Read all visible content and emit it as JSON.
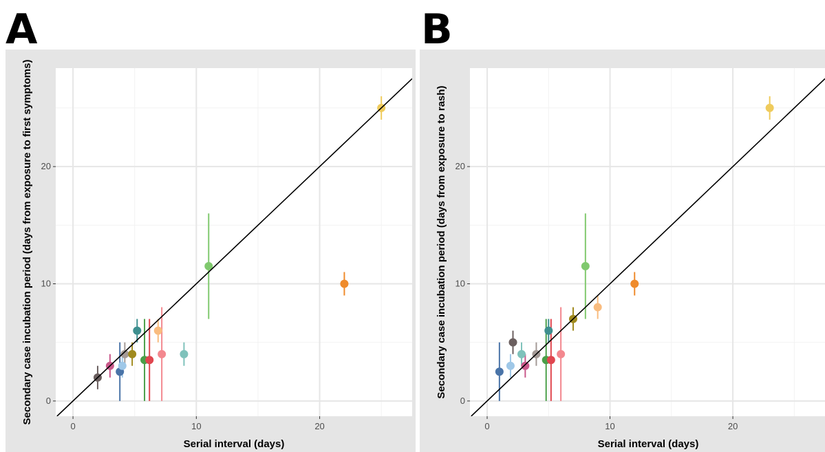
{
  "chart_data": [
    {
      "type": "scatter",
      "panel_label": "A",
      "xlabel": "Serial interval (days)",
      "ylabel": "Secondary case incubation period (days from exposure to first symptoms)",
      "xlim": [
        -1.4,
        27.5
      ],
      "ylim": [
        -1.3,
        28.4
      ],
      "xticks": [
        0,
        10,
        20
      ],
      "yticks": [
        0,
        10,
        20
      ],
      "grid": true,
      "legend": "none",
      "reference_line": "y = x",
      "series": [
        {
          "x": 2,
          "y": 2,
          "ymin": 1,
          "ymax": 3,
          "color": "#6b5f5f"
        },
        {
          "x": 3,
          "y": 3,
          "ymin": 2,
          "ymax": 4,
          "color": "#c9598b"
        },
        {
          "x": 3.8,
          "y": 2.5,
          "ymin": 0,
          "ymax": 5,
          "color": "#4a74a8"
        },
        {
          "x": 4,
          "y": 3,
          "ymin": 2,
          "ymax": 4,
          "color": "#9fc8e8"
        },
        {
          "x": 4.2,
          "y": 4,
          "ymin": 3,
          "ymax": 5,
          "color": "#a49a96"
        },
        {
          "x": 4.8,
          "y": 4,
          "ymin": 3,
          "ymax": 5,
          "color": "#a08a1e"
        },
        {
          "x": 5.2,
          "y": 6,
          "ymin": 5,
          "ymax": 7,
          "color": "#3e8f8f"
        },
        {
          "x": 5.8,
          "y": 3.5,
          "ymin": 0,
          "ymax": 7,
          "color": "#4a9f48"
        },
        {
          "x": 6.2,
          "y": 3.5,
          "ymin": 0,
          "ymax": 7,
          "color": "#e0464f"
        },
        {
          "x": 6.9,
          "y": 6,
          "ymin": 5,
          "ymax": 7,
          "color": "#f9bc7f"
        },
        {
          "x": 7.2,
          "y": 4,
          "ymin": 0,
          "ymax": 8,
          "color": "#f3888f"
        },
        {
          "x": 9,
          "y": 4,
          "ymin": 3,
          "ymax": 5,
          "color": "#7fc2bb"
        },
        {
          "x": 11,
          "y": 11.5,
          "ymin": 7,
          "ymax": 16,
          "color": "#80c96e"
        },
        {
          "x": 22,
          "y": 10,
          "ymin": 9,
          "ymax": 11,
          "color": "#ef8b2c"
        },
        {
          "x": 25,
          "y": 25,
          "ymin": 24,
          "ymax": 26,
          "color": "#efcb5c"
        }
      ]
    },
    {
      "type": "scatter",
      "panel_label": "B",
      "xlabel": "Serial interval (days)",
      "ylabel": "Secondary case incubation period (days from exposure to rash)",
      "xlim": [
        -1.4,
        27.5
      ],
      "ylim": [
        -1.3,
        28.4
      ],
      "xticks": [
        0,
        10,
        20
      ],
      "yticks": [
        0,
        10,
        20
      ],
      "grid": true,
      "legend": "none",
      "reference_line": "y = x",
      "series": [
        {
          "x": 1,
          "y": 2.5,
          "ymin": 0,
          "ymax": 5,
          "color": "#4a74a8"
        },
        {
          "x": 1.9,
          "y": 3,
          "ymin": 2,
          "ymax": 4,
          "color": "#9fc8e8"
        },
        {
          "x": 2.1,
          "y": 5,
          "ymin": 4,
          "ymax": 6,
          "color": "#6b5f5f"
        },
        {
          "x": 2.8,
          "y": 4,
          "ymin": 3,
          "ymax": 5,
          "color": "#7fc2bb"
        },
        {
          "x": 3.1,
          "y": 3,
          "ymin": 2,
          "ymax": 4,
          "color": "#c9598b"
        },
        {
          "x": 4,
          "y": 4,
          "ymin": 3,
          "ymax": 5,
          "color": "#a49a96"
        },
        {
          "x": 4.8,
          "y": 3.5,
          "ymin": 0,
          "ymax": 7,
          "color": "#4a9f48"
        },
        {
          "x": 5,
          "y": 6,
          "ymin": 5,
          "ymax": 7,
          "color": "#3e8f8f"
        },
        {
          "x": 5.2,
          "y": 3.5,
          "ymin": 0,
          "ymax": 7,
          "color": "#e0464f"
        },
        {
          "x": 6,
          "y": 4,
          "ymin": 0,
          "ymax": 8,
          "color": "#f3888f"
        },
        {
          "x": 7,
          "y": 7,
          "ymin": 6,
          "ymax": 8,
          "color": "#a08a1e"
        },
        {
          "x": 8,
          "y": 11.5,
          "ymin": 7,
          "ymax": 16,
          "color": "#80c96e"
        },
        {
          "x": 9,
          "y": 8,
          "ymin": 7,
          "ymax": 9,
          "color": "#f9bc7f"
        },
        {
          "x": 12,
          "y": 10,
          "ymin": 9,
          "ymax": 11,
          "color": "#ef8b2c"
        },
        {
          "x": 23,
          "y": 25,
          "ymin": 24,
          "ymax": 26,
          "color": "#efcb5c"
        }
      ]
    }
  ]
}
